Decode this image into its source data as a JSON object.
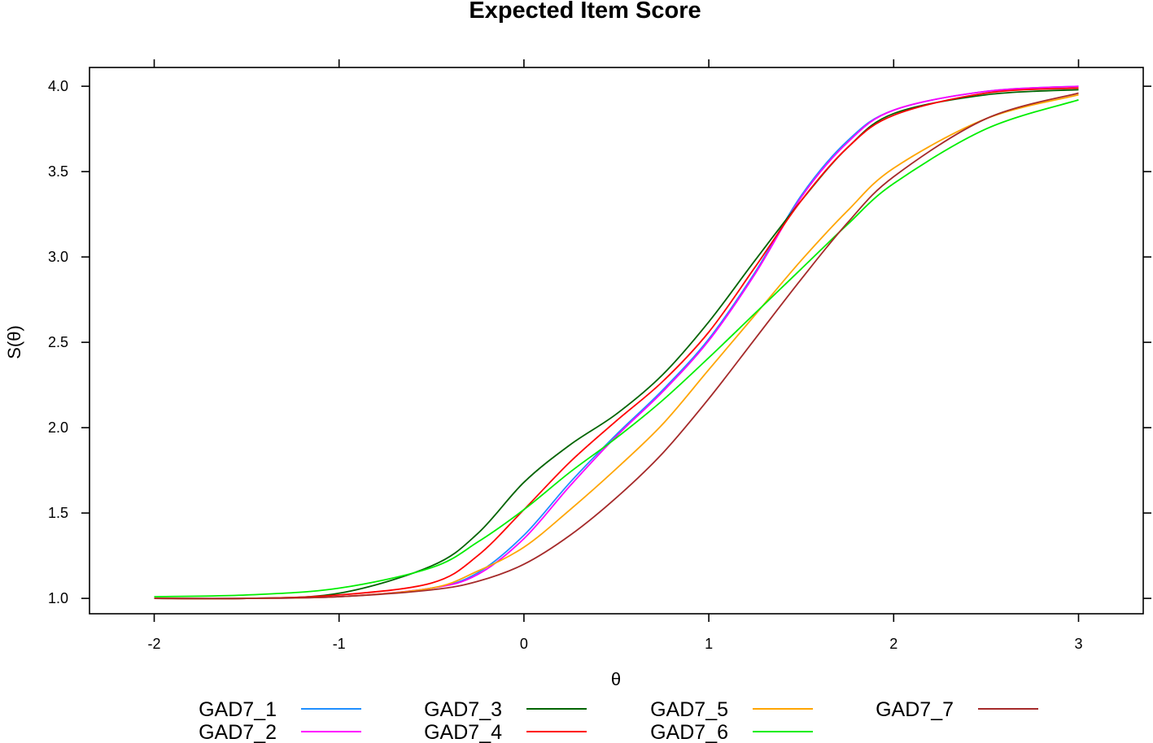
{
  "chart_data": {
    "type": "line",
    "title": "Expected Item Score",
    "xlabel": "θ",
    "ylabel": "S(θ)",
    "xlim": [
      -2.35,
      3.35
    ],
    "ylim": [
      0.91,
      4.11
    ],
    "x_ticks": [
      -2,
      -1,
      0,
      1,
      2,
      3
    ],
    "x_tick_labels": [
      "-2",
      "-1",
      "0",
      "1",
      "2",
      "3"
    ],
    "y_ticks": [
      1.0,
      1.5,
      2.0,
      2.5,
      3.0,
      3.5,
      4.0
    ],
    "y_tick_labels": [
      "1.0",
      "1.5",
      "2.0",
      "2.5",
      "3.0",
      "3.5",
      "4.0"
    ],
    "grid": false,
    "legend_position": "bottom",
    "x": [
      -2.0,
      -1.5,
      -1.0,
      -0.5,
      -0.25,
      0.0,
      0.25,
      0.5,
      0.75,
      1.0,
      1.25,
      1.5,
      1.75,
      2.0,
      2.5,
      3.0
    ],
    "series": [
      {
        "name": "GAD7_1",
        "color": "#1f8fff",
        "values": [
          1.0,
          1.0,
          1.01,
          1.06,
          1.15,
          1.37,
          1.68,
          1.96,
          2.22,
          2.52,
          2.91,
          3.36,
          3.68,
          3.86,
          3.97,
          4.0
        ]
      },
      {
        "name": "GAD7_2",
        "color": "#ff00ff",
        "values": [
          1.0,
          1.0,
          1.01,
          1.06,
          1.14,
          1.35,
          1.66,
          1.95,
          2.21,
          2.51,
          2.9,
          3.35,
          3.67,
          3.86,
          3.97,
          4.0
        ]
      },
      {
        "name": "GAD7_3",
        "color": "#006400",
        "values": [
          1.0,
          1.0,
          1.03,
          1.19,
          1.38,
          1.68,
          1.9,
          2.08,
          2.31,
          2.62,
          2.98,
          3.33,
          3.64,
          3.84,
          3.95,
          3.98
        ]
      },
      {
        "name": "GAD7_4",
        "color": "#ff0000",
        "values": [
          1.0,
          1.0,
          1.02,
          1.09,
          1.25,
          1.52,
          1.8,
          2.04,
          2.27,
          2.56,
          2.94,
          3.33,
          3.64,
          3.83,
          3.96,
          3.99
        ]
      },
      {
        "name": "GAD7_5",
        "color": "#ffa500",
        "values": [
          1.0,
          1.0,
          1.01,
          1.06,
          1.16,
          1.3,
          1.52,
          1.76,
          2.02,
          2.34,
          2.66,
          2.98,
          3.27,
          3.52,
          3.81,
          3.95
        ]
      },
      {
        "name": "GAD7_6",
        "color": "#00ee00",
        "values": [
          1.01,
          1.02,
          1.06,
          1.18,
          1.33,
          1.52,
          1.74,
          1.94,
          2.16,
          2.41,
          2.67,
          2.93,
          3.19,
          3.43,
          3.75,
          3.92
        ]
      },
      {
        "name": "GAD7_7",
        "color": "#a52a2a",
        "values": [
          1.0,
          1.0,
          1.01,
          1.05,
          1.1,
          1.2,
          1.37,
          1.59,
          1.85,
          2.17,
          2.52,
          2.87,
          3.2,
          3.47,
          3.81,
          3.96
        ]
      }
    ]
  }
}
